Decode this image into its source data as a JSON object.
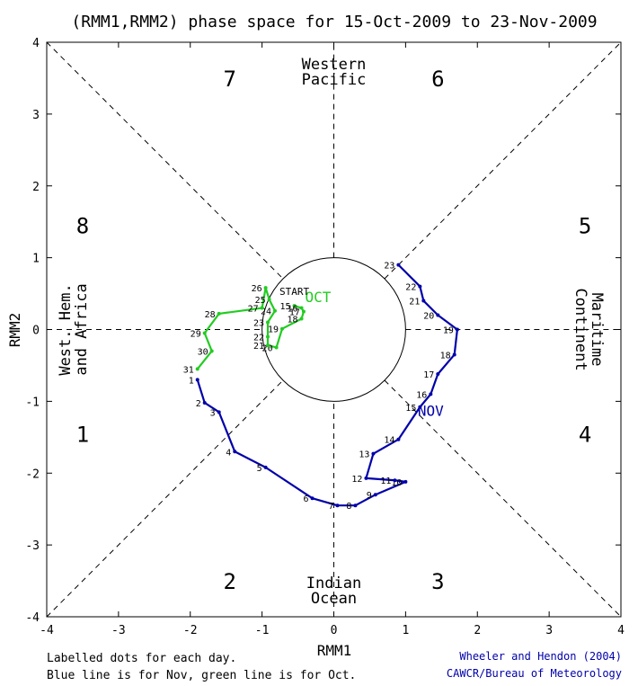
{
  "chart_data": {
    "type": "line",
    "title": "(RMM1,RMM2) phase space for 15-Oct-2009 to 23-Nov-2009",
    "xlabel": "RMM1",
    "ylabel": "RMM2",
    "xlim": [
      -4,
      4
    ],
    "ylim": [
      -4,
      4
    ],
    "xticks": [
      "-4",
      "-3",
      "-2",
      "-1",
      "0",
      "1",
      "2",
      "3",
      "4"
    ],
    "yticks": [
      "-4",
      "-3",
      "-2",
      "-1",
      "0",
      "1",
      "2",
      "3",
      "4"
    ],
    "phases": [
      {
        "label": "1",
        "x": -3.5,
        "y": -1.45
      },
      {
        "label": "2",
        "x": -1.45,
        "y": -3.5
      },
      {
        "label": "3",
        "x": 1.45,
        "y": -3.5
      },
      {
        "label": "4",
        "x": 3.5,
        "y": -1.45
      },
      {
        "label": "5",
        "x": 3.5,
        "y": 1.45
      },
      {
        "label": "6",
        "x": 1.45,
        "y": 3.5
      },
      {
        "label": "7",
        "x": -1.45,
        "y": 3.5
      },
      {
        "label": "8",
        "x": -3.5,
        "y": 1.45
      }
    ],
    "regions": {
      "top": [
        "Western",
        "Pacific"
      ],
      "bottom": [
        "Indian",
        "Ocean"
      ],
      "left": [
        "West. Hem.",
        "and Africa"
      ],
      "right": [
        "Maritime",
        "Continent"
      ]
    },
    "series": [
      {
        "name": "Oct",
        "color": "#22cc22",
        "month_label": "OCT",
        "month_label_at": [
          -0.22,
          0.38
        ],
        "points": [
          {
            "day": "15",
            "x": -0.55,
            "y": 0.33
          },
          {
            "day": "16",
            "x": -0.45,
            "y": 0.3
          },
          {
            "day": "17",
            "x": -0.42,
            "y": 0.25
          },
          {
            "day": "18",
            "x": -0.45,
            "y": 0.15
          },
          {
            "day": "19",
            "x": -0.72,
            "y": 0.01
          },
          {
            "day": "20",
            "x": -0.8,
            "y": -0.25
          },
          {
            "day": "21",
            "x": -0.92,
            "y": -0.22
          },
          {
            "day": "22",
            "x": -0.92,
            "y": -0.1
          },
          {
            "day": "23",
            "x": -0.92,
            "y": 0.1
          },
          {
            "day": "24",
            "x": -0.82,
            "y": 0.26
          },
          {
            "day": "25",
            "x": -0.9,
            "y": 0.42
          },
          {
            "day": "26",
            "x": -0.95,
            "y": 0.58
          },
          {
            "day": "27",
            "x": -1.0,
            "y": 0.3
          },
          {
            "day": "28",
            "x": -1.6,
            "y": 0.22
          },
          {
            "day": "29",
            "x": -1.8,
            "y": -0.05
          },
          {
            "day": "30",
            "x": -1.7,
            "y": -0.3
          },
          {
            "day": "31",
            "x": -1.9,
            "y": -0.55
          }
        ]
      },
      {
        "name": "Nov",
        "color": "#0000aa",
        "month_label": "NOV",
        "month_label_at": [
          1.35,
          -1.2
        ],
        "points": [
          {
            "day": "1",
            "x": -1.9,
            "y": -0.7
          },
          {
            "day": "2",
            "x": -1.8,
            "y": -1.02
          },
          {
            "day": "3",
            "x": -1.6,
            "y": -1.15
          },
          {
            "day": "4",
            "x": -1.38,
            "y": -1.7
          },
          {
            "day": "5",
            "x": -0.95,
            "y": -1.92
          },
          {
            "day": "6",
            "x": -0.3,
            "y": -2.35
          },
          {
            "day": "7",
            "x": 0.05,
            "y": -2.45
          },
          {
            "day": "8",
            "x": 0.3,
            "y": -2.45
          },
          {
            "day": "9",
            "x": 0.58,
            "y": -2.3
          },
          {
            "day": "10",
            "x": 1.0,
            "y": -2.12
          },
          {
            "day": "11",
            "x": 0.85,
            "y": -2.1
          },
          {
            "day": "12",
            "x": 0.45,
            "y": -2.07
          },
          {
            "day": "13",
            "x": 0.55,
            "y": -1.73
          },
          {
            "day": "14",
            "x": 0.9,
            "y": -1.53
          },
          {
            "day": "15",
            "x": 1.2,
            "y": -1.08
          },
          {
            "day": "16",
            "x": 1.35,
            "y": -0.9
          },
          {
            "day": "17",
            "x": 1.45,
            "y": -0.62
          },
          {
            "day": "18",
            "x": 1.68,
            "y": -0.35
          },
          {
            "day": "19",
            "x": 1.72,
            "y": 0.0
          },
          {
            "day": "20",
            "x": 1.45,
            "y": 0.2
          },
          {
            "day": "21",
            "x": 1.25,
            "y": 0.4
          },
          {
            "day": "22",
            "x": 1.2,
            "y": 0.6
          },
          {
            "day": "23",
            "x": 0.9,
            "y": 0.9
          }
        ]
      }
    ],
    "start_label": "START",
    "start_label_at": [
      -0.55,
      0.48
    ],
    "footnotes": {
      "left": [
        "Labelled dots for each day.",
        "Blue line is for Nov, green line is for Oct."
      ],
      "right": [
        "Wheeler and Hendon (2004)",
        "CAWCR/Bureau of Meteorology"
      ]
    },
    "grid": false,
    "unit_circle_radius": 1
  }
}
